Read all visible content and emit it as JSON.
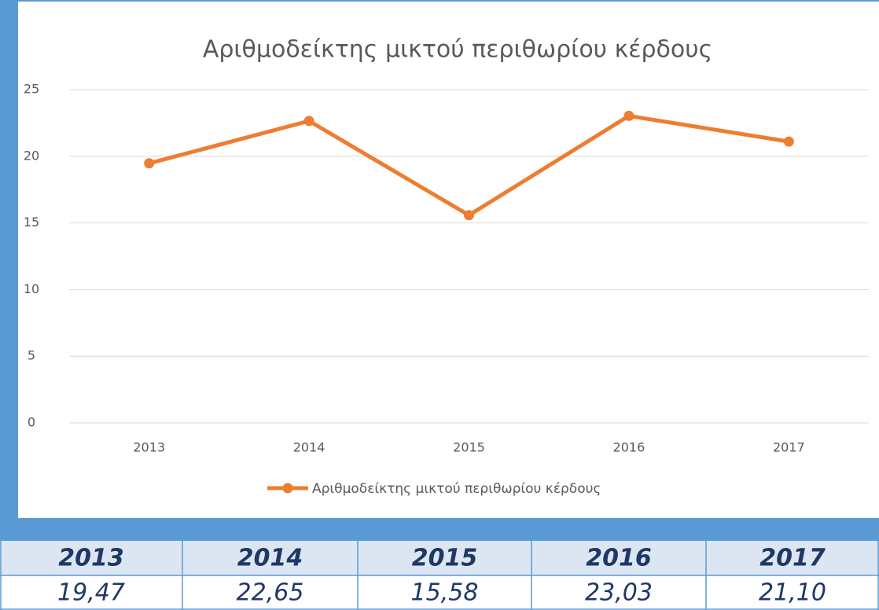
{
  "chart_data": {
    "type": "line",
    "title": "Αριθμοδείκτης μικτού περιθωρίου κέρδους",
    "categories": [
      "2013",
      "2014",
      "2015",
      "2016",
      "2017"
    ],
    "series": [
      {
        "name": "Αριθμοδείκτης μικτού περιθωρίου κέρδους",
        "color": "#ed7d31",
        "values": [
          19.47,
          22.65,
          15.58,
          23.03,
          21.1
        ]
      }
    ],
    "ylim": [
      0,
      25
    ],
    "yticks": [
      0,
      5,
      10,
      15,
      20,
      25
    ],
    "grid": true,
    "legend": "bottom"
  },
  "table": {
    "header": [
      "2013",
      "2014",
      "2015",
      "2016",
      "2017"
    ],
    "values": [
      "19,47",
      "22,65",
      "15,58",
      "23,03",
      "21,10"
    ]
  }
}
